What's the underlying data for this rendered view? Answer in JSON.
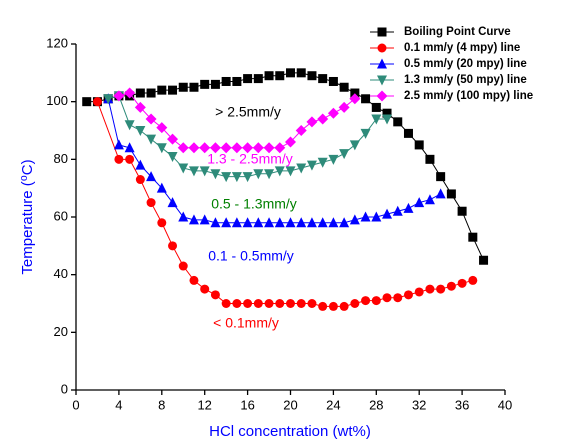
{
  "chart_data": {
    "type": "line",
    "xlabel": "HCl concentration (wt%)",
    "ylabel": "Temperature (⁰C)",
    "axis_label_color": "#0000ff",
    "xlim": [
      0,
      40
    ],
    "xticks": [
      0,
      4,
      8,
      12,
      16,
      20,
      24,
      28,
      32,
      36,
      40
    ],
    "ylim": [
      0,
      120
    ],
    "yticks": [
      0,
      20,
      40,
      60,
      80,
      100,
      120
    ],
    "legend": "top-right",
    "series": [
      {
        "name": "Boiling Point Curve",
        "color": "#000000",
        "marker": "square",
        "x": [
          1,
          2,
          3,
          4,
          5,
          6,
          7,
          8,
          9,
          10,
          11,
          12,
          13,
          14,
          15,
          16,
          17,
          18,
          19,
          20,
          21,
          22,
          23,
          24,
          25,
          26,
          27,
          28,
          29,
          30,
          31,
          32,
          33,
          34,
          35,
          36,
          37,
          38
        ],
        "values": [
          100,
          100,
          101,
          102,
          102,
          103,
          103,
          104,
          104,
          105,
          105,
          106,
          106,
          107,
          107,
          108,
          108,
          109,
          109,
          110,
          110,
          109,
          108,
          107,
          105,
          103,
          101,
          98,
          96,
          93,
          89,
          85,
          80,
          74,
          68,
          62,
          53,
          45
        ]
      },
      {
        "name": "0.1 mm/y (4 mpy) line",
        "color": "#ff0000",
        "marker": "circle",
        "x": [
          2,
          4,
          5,
          6,
          7,
          8,
          9,
          10,
          11,
          12,
          13,
          14,
          15,
          16,
          17,
          18,
          19,
          20,
          21,
          22,
          23,
          24,
          25,
          26,
          27,
          28,
          29,
          30,
          31,
          32,
          33,
          34,
          35,
          36,
          37
        ],
        "values": [
          100,
          80,
          80,
          73,
          65,
          58,
          50,
          43,
          38,
          35,
          33,
          30,
          30,
          30,
          30,
          30,
          30,
          30,
          30,
          30,
          29,
          29,
          29,
          30,
          31,
          31,
          32,
          32,
          33,
          34,
          35,
          35,
          36,
          37,
          38
        ]
      },
      {
        "name": "0.5 mm/y (20 mpy) line",
        "color": "#0000ff",
        "marker": "triangle-up",
        "x": [
          3,
          4,
          5,
          6,
          7,
          8,
          9,
          10,
          11,
          12,
          13,
          14,
          15,
          16,
          17,
          18,
          19,
          20,
          21,
          22,
          23,
          24,
          25,
          26,
          27,
          28,
          29,
          30,
          31,
          32,
          33,
          34
        ],
        "values": [
          101,
          85,
          84,
          78,
          74,
          70,
          65,
          60,
          59,
          59,
          58,
          58,
          58,
          58,
          58,
          58,
          58,
          58,
          58,
          58,
          58,
          58,
          58,
          59,
          60,
          60,
          61,
          62,
          63,
          65,
          66,
          68
        ]
      },
      {
        "name": "1.3 mm/y (50 mpy) line",
        "color": "#2e8b7a",
        "marker": "triangle-down",
        "x": [
          3,
          4,
          5,
          6,
          7,
          8,
          9,
          10,
          11,
          12,
          13,
          14,
          15,
          16,
          17,
          18,
          19,
          20,
          21,
          22,
          23,
          24,
          25,
          26,
          27,
          28,
          29
        ],
        "values": [
          101,
          102,
          92,
          90,
          87,
          84,
          81,
          77,
          76,
          76,
          75,
          74,
          74,
          74,
          75,
          75,
          76,
          76,
          77,
          78,
          79,
          80,
          82,
          85,
          89,
          94,
          94
        ]
      },
      {
        "name": "2.5 mm/y (100 mpy) line",
        "color": "#ff00ff",
        "marker": "diamond",
        "x": [
          4,
          5,
          6,
          7,
          8,
          9,
          10,
          11,
          12,
          13,
          14,
          15,
          16,
          17,
          18,
          19,
          20,
          21,
          22,
          23,
          24,
          25,
          26
        ],
        "values": [
          102,
          103,
          98,
          94,
          91,
          87,
          84,
          84,
          84,
          84,
          84,
          84,
          84,
          84,
          84,
          84,
          86,
          90,
          93,
          94,
          96,
          98,
          101
        ]
      }
    ],
    "annotations": [
      {
        "text": "> 2.5mm/y",
        "color": "#000000"
      },
      {
        "text": "1.3 - 2.5mm/y",
        "color": "#ff00ff"
      },
      {
        "text": "0.5 - 1.3mm/y",
        "color": "#008000"
      },
      {
        "text": "0.1 - 0.5mm/y",
        "color": "#0000ff"
      },
      {
        "text": "< 0.1mm/y",
        "color": "#ff0000"
      }
    ]
  }
}
